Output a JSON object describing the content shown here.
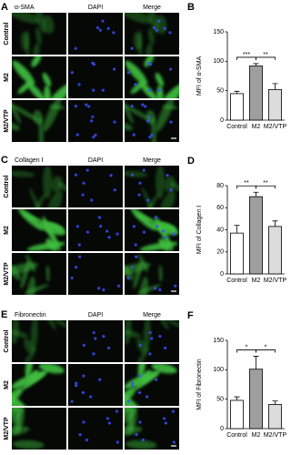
{
  "figure": {
    "panels": [
      {
        "label": "A",
        "columns": [
          "α-SMA",
          "DAPI",
          "Merge"
        ],
        "rows": [
          "Control",
          "M2",
          "M2/VTP"
        ]
      },
      {
        "label": "C",
        "columns": [
          "Collagen Ⅰ",
          "DAPI",
          "Merge"
        ],
        "rows": [
          "Control",
          "M2",
          "M2/VTP"
        ]
      },
      {
        "label": "E",
        "columns": [
          "Fibronectin",
          "DAPI",
          "Merge"
        ],
        "rows": [
          "Control",
          "M2",
          "M2/VTP"
        ]
      }
    ]
  },
  "chart_data": [
    {
      "type": "bar",
      "panel_label": "B",
      "ylabel": "MFI of α-SMA",
      "categories": [
        "Control",
        "M2",
        "M2/VTP"
      ],
      "values": [
        45,
        92,
        52
      ],
      "errors": [
        4,
        4,
        10
      ],
      "colors": [
        "#ffffff",
        "#9e9e9e",
        "#dcdcdc"
      ],
      "ylim": [
        0,
        150
      ],
      "yticks": [
        0,
        50,
        100,
        150
      ],
      "annotations": [
        "***",
        "**"
      ]
    },
    {
      "type": "bar",
      "panel_label": "D",
      "ylabel": "MFI of Collagen Ⅰ",
      "categories": [
        "Control",
        "M2",
        "M2/VTP"
      ],
      "values": [
        37,
        70,
        43
      ],
      "errors": [
        7,
        4,
        5
      ],
      "colors": [
        "#ffffff",
        "#9e9e9e",
        "#dcdcdc"
      ],
      "ylim": [
        0,
        80
      ],
      "yticks": [
        0,
        20,
        40,
        60,
        80
      ],
      "annotations": [
        "**",
        "**"
      ]
    },
    {
      "type": "bar",
      "panel_label": "F",
      "ylabel": "MFI of Fibronectin",
      "categories": [
        "Control",
        "M2",
        "M2/VTP"
      ],
      "values": [
        48,
        101,
        41
      ],
      "errors": [
        6,
        22,
        6
      ],
      "colors": [
        "#ffffff",
        "#9e9e9e",
        "#dcdcdc"
      ],
      "ylim": [
        0,
        150
      ],
      "yticks": [
        0,
        50,
        100,
        150
      ],
      "annotations": [
        "*",
        "*"
      ]
    }
  ]
}
